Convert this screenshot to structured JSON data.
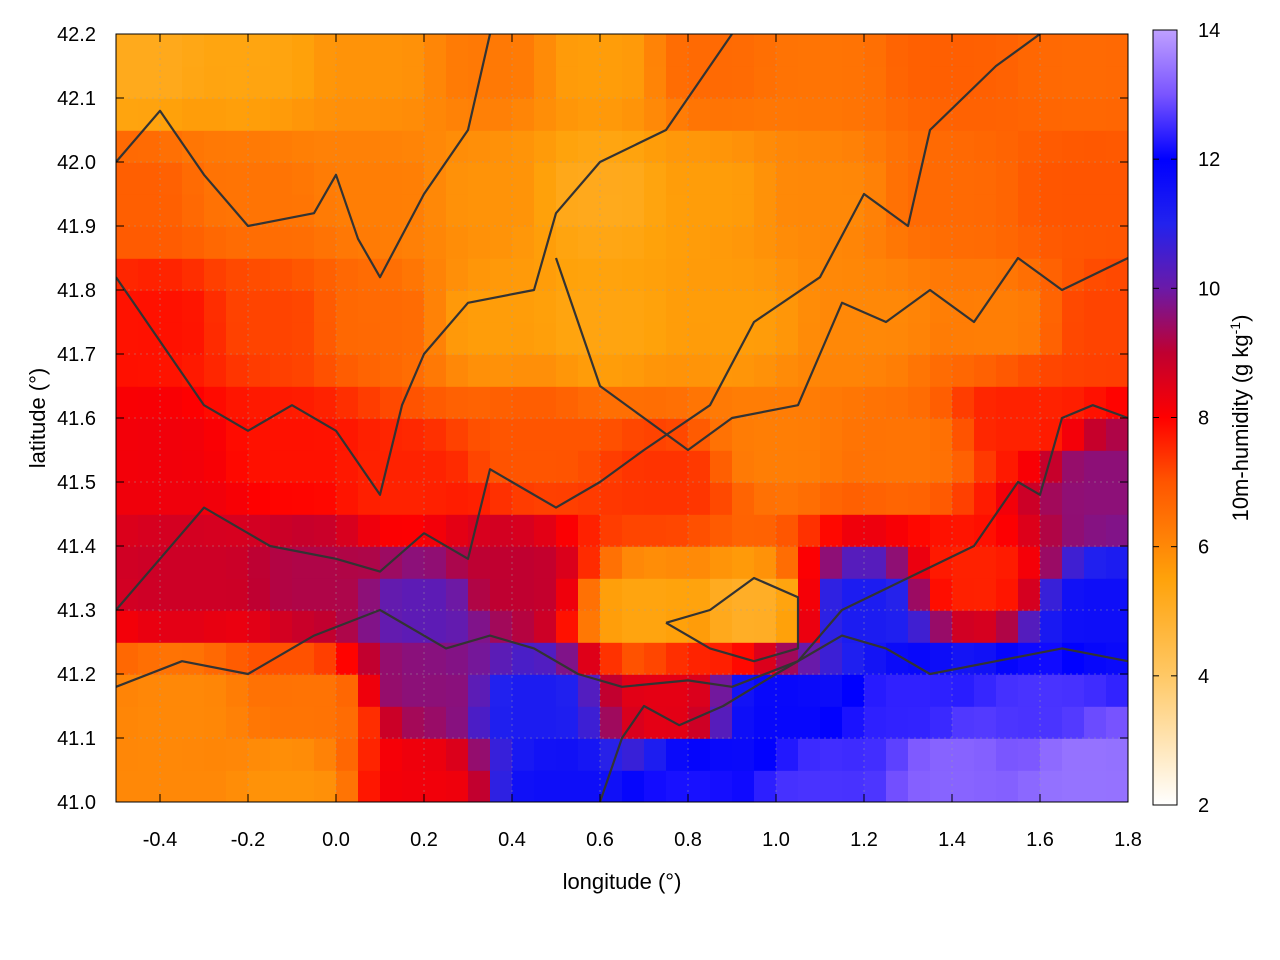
{
  "chart_data": {
    "type": "heatmap",
    "title": "",
    "xlabel": "longitude (°)",
    "ylabel": "latitude (°)",
    "colorbar_label": "10m-humidity (g kg",
    "colorbar_label_sup": "-1",
    "colorbar_label_end": ")",
    "xlim": [
      -0.5,
      1.8
    ],
    "ylim": [
      41.0,
      42.2
    ],
    "clim": [
      2,
      14
    ],
    "x_ticks": [
      {
        "value": -0.4,
        "label": "-0.4"
      },
      {
        "value": -0.2,
        "label": "-0.2"
      },
      {
        "value": 0.0,
        "label": "0.0"
      },
      {
        "value": 0.2,
        "label": "0.2"
      },
      {
        "value": 0.4,
        "label": "0.4"
      },
      {
        "value": 0.6,
        "label": "0.6"
      },
      {
        "value": 0.8,
        "label": "0.8"
      },
      {
        "value": 1.0,
        "label": "1.0"
      },
      {
        "value": 1.2,
        "label": "1.2"
      },
      {
        "value": 1.4,
        "label": "1.4"
      },
      {
        "value": 1.6,
        "label": "1.6"
      },
      {
        "value": 1.8,
        "label": "1.8"
      }
    ],
    "y_ticks": [
      {
        "value": 41.0,
        "label": "41.0"
      },
      {
        "value": 41.1,
        "label": "41.1"
      },
      {
        "value": 41.2,
        "label": "41.2"
      },
      {
        "value": 41.3,
        "label": "41.3"
      },
      {
        "value": 41.4,
        "label": "41.4"
      },
      {
        "value": 41.5,
        "label": "41.5"
      },
      {
        "value": 41.6,
        "label": "41.6"
      },
      {
        "value": 41.7,
        "label": "41.7"
      },
      {
        "value": 41.8,
        "label": "41.8"
      },
      {
        "value": 41.9,
        "label": "41.9"
      },
      {
        "value": 42.0,
        "label": "42.0"
      },
      {
        "value": 42.1,
        "label": "42.1"
      },
      {
        "value": 42.2,
        "label": "42.2"
      }
    ],
    "colorbar_ticks": [
      {
        "value": 2,
        "label": "2"
      },
      {
        "value": 4,
        "label": "4"
      },
      {
        "value": 6,
        "label": "6"
      },
      {
        "value": 8,
        "label": "8"
      },
      {
        "value": 10,
        "label": "10"
      },
      {
        "value": 12,
        "label": "12"
      },
      {
        "value": 14,
        "label": "14"
      }
    ],
    "colormap": [
      {
        "value": 2,
        "color": "#ffffff"
      },
      {
        "value": 4,
        "color": "#ffc865"
      },
      {
        "value": 5.5,
        "color": "#ffa20a"
      },
      {
        "value": 7,
        "color": "#ff5500"
      },
      {
        "value": 8,
        "color": "#ff0000"
      },
      {
        "value": 9,
        "color": "#c00030"
      },
      {
        "value": 10,
        "color": "#6a1aa8"
      },
      {
        "value": 11,
        "color": "#2222ee"
      },
      {
        "value": 12,
        "color": "#0000ff"
      },
      {
        "value": 13,
        "color": "#7a55ff"
      },
      {
        "value": 14,
        "color": "#bfa0ff"
      }
    ],
    "grid": true,
    "contours": true,
    "field_points": [
      {
        "lon": -0.45,
        "lat": 42.15,
        "value": 5.2
      },
      {
        "lon": -0.2,
        "lat": 42.15,
        "value": 5.4
      },
      {
        "lon": 0.1,
        "lat": 42.15,
        "value": 5.8
      },
      {
        "lon": 0.35,
        "lat": 42.15,
        "value": 6.3
      },
      {
        "lon": 0.6,
        "lat": 42.15,
        "value": 5.6
      },
      {
        "lon": 0.85,
        "lat": 42.15,
        "value": 6.6
      },
      {
        "lon": 1.1,
        "lat": 42.15,
        "value": 6.4
      },
      {
        "lon": 1.4,
        "lat": 42.15,
        "value": 6.8
      },
      {
        "lon": 1.7,
        "lat": 42.15,
        "value": 6.6
      },
      {
        "lon": -0.45,
        "lat": 41.95,
        "value": 6.8
      },
      {
        "lon": -0.2,
        "lat": 41.95,
        "value": 6.4
      },
      {
        "lon": 0.1,
        "lat": 41.95,
        "value": 6.2
      },
      {
        "lon": 0.35,
        "lat": 41.95,
        "value": 5.8
      },
      {
        "lon": 0.6,
        "lat": 41.95,
        "value": 5.2
      },
      {
        "lon": 0.85,
        "lat": 41.95,
        "value": 5.6
      },
      {
        "lon": 1.1,
        "lat": 41.95,
        "value": 6.0
      },
      {
        "lon": 1.4,
        "lat": 41.95,
        "value": 6.6
      },
      {
        "lon": 1.7,
        "lat": 41.95,
        "value": 7.0
      },
      {
        "lon": -0.4,
        "lat": 41.75,
        "value": 7.8
      },
      {
        "lon": -0.15,
        "lat": 41.75,
        "value": 7.2
      },
      {
        "lon": 0.1,
        "lat": 41.75,
        "value": 6.6
      },
      {
        "lon": 0.35,
        "lat": 41.75,
        "value": 5.6
      },
      {
        "lon": 0.6,
        "lat": 41.75,
        "value": 5.4
      },
      {
        "lon": 0.9,
        "lat": 41.75,
        "value": 5.6
      },
      {
        "lon": 1.2,
        "lat": 41.75,
        "value": 6.0
      },
      {
        "lon": 1.5,
        "lat": 41.75,
        "value": 6.2
      },
      {
        "lon": 1.75,
        "lat": 41.75,
        "value": 7.2
      },
      {
        "lon": -0.4,
        "lat": 41.55,
        "value": 8.2
      },
      {
        "lon": -0.1,
        "lat": 41.55,
        "value": 7.8
      },
      {
        "lon": 0.15,
        "lat": 41.5,
        "value": 7.6
      },
      {
        "lon": 0.45,
        "lat": 41.55,
        "value": 7.0
      },
      {
        "lon": 0.75,
        "lat": 41.5,
        "value": 7.4
      },
      {
        "lon": 1.0,
        "lat": 41.55,
        "value": 6.2
      },
      {
        "lon": 1.3,
        "lat": 41.55,
        "value": 6.4
      },
      {
        "lon": 1.55,
        "lat": 41.6,
        "value": 7.6
      },
      {
        "lon": 1.75,
        "lat": 41.5,
        "value": 9.6
      },
      {
        "lon": -0.35,
        "lat": 41.35,
        "value": 8.8
      },
      {
        "lon": -0.05,
        "lat": 41.35,
        "value": 9.2
      },
      {
        "lon": 0.2,
        "lat": 41.3,
        "value": 10.2
      },
      {
        "lon": 0.4,
        "lat": 41.35,
        "value": 9.0
      },
      {
        "lon": 0.7,
        "lat": 41.3,
        "value": 5.4
      },
      {
        "lon": 0.95,
        "lat": 41.3,
        "value": 5.0
      },
      {
        "lon": 1.2,
        "lat": 41.3,
        "value": 11.2
      },
      {
        "lon": 1.45,
        "lat": 41.35,
        "value": 7.6
      },
      {
        "lon": 1.75,
        "lat": 41.3,
        "value": 11.6
      },
      {
        "lon": -0.35,
        "lat": 41.15,
        "value": 6.0
      },
      {
        "lon": -0.05,
        "lat": 41.15,
        "value": 6.4
      },
      {
        "lon": 0.2,
        "lat": 41.18,
        "value": 9.6
      },
      {
        "lon": 0.45,
        "lat": 41.15,
        "value": 11.2
      },
      {
        "lon": 0.75,
        "lat": 41.15,
        "value": 8.4
      },
      {
        "lon": 1.0,
        "lat": 41.15,
        "value": 11.8
      },
      {
        "lon": 1.3,
        "lat": 41.15,
        "value": 12.4
      },
      {
        "lon": 1.6,
        "lat": 41.15,
        "value": 12.6
      },
      {
        "lon": -0.4,
        "lat": 41.03,
        "value": 6.0
      },
      {
        "lon": -0.1,
        "lat": 41.03,
        "value": 5.8
      },
      {
        "lon": 0.2,
        "lat": 41.03,
        "value": 8.2
      },
      {
        "lon": 0.5,
        "lat": 41.03,
        "value": 11.6
      },
      {
        "lon": 0.8,
        "lat": 41.03,
        "value": 12.2
      },
      {
        "lon": 1.1,
        "lat": 41.03,
        "value": 12.6
      },
      {
        "lon": 1.4,
        "lat": 41.05,
        "value": 13.2
      },
      {
        "lon": 1.7,
        "lat": 41.05,
        "value": 13.4
      }
    ],
    "contour_lines": [
      [
        [
          -0.5,
          42.0
        ],
        [
          -0.4,
          42.08
        ],
        [
          -0.3,
          41.98
        ],
        [
          -0.2,
          41.9
        ],
        [
          -0.05,
          41.92
        ],
        [
          0.0,
          41.98
        ],
        [
          0.05,
          41.88
        ],
        [
          0.1,
          41.82
        ],
        [
          0.2,
          41.95
        ],
        [
          0.3,
          42.05
        ],
        [
          0.35,
          42.2
        ]
      ],
      [
        [
          -0.5,
          41.82
        ],
        [
          -0.4,
          41.72
        ],
        [
          -0.3,
          41.62
        ],
        [
          -0.2,
          41.58
        ],
        [
          -0.1,
          41.62
        ],
        [
          0.0,
          41.58
        ],
        [
          0.1,
          41.48
        ],
        [
          0.15,
          41.62
        ],
        [
          0.2,
          41.7
        ],
        [
          0.3,
          41.78
        ],
        [
          0.45,
          41.8
        ],
        [
          0.5,
          41.92
        ],
        [
          0.6,
          42.0
        ],
        [
          0.75,
          42.05
        ],
        [
          0.9,
          42.2
        ]
      ],
      [
        [
          -0.5,
          41.3
        ],
        [
          -0.4,
          41.38
        ],
        [
          -0.3,
          41.46
        ],
        [
          -0.15,
          41.4
        ],
        [
          0.0,
          41.38
        ],
        [
          0.1,
          41.36
        ],
        [
          0.2,
          41.42
        ],
        [
          0.3,
          41.38
        ],
        [
          0.35,
          41.52
        ],
        [
          0.5,
          41.46
        ],
        [
          0.6,
          41.5
        ],
        [
          0.7,
          41.55
        ],
        [
          0.85,
          41.62
        ],
        [
          0.95,
          41.75
        ],
        [
          1.1,
          41.82
        ],
        [
          1.2,
          41.95
        ],
        [
          1.3,
          41.9
        ],
        [
          1.35,
          42.05
        ],
        [
          1.5,
          42.15
        ],
        [
          1.6,
          42.2
        ]
      ],
      [
        [
          -0.5,
          41.18
        ],
        [
          -0.35,
          41.22
        ],
        [
          -0.2,
          41.2
        ],
        [
          -0.05,
          41.26
        ],
        [
          0.1,
          41.3
        ],
        [
          0.25,
          41.24
        ],
        [
          0.35,
          41.26
        ],
        [
          0.45,
          41.24
        ],
        [
          0.55,
          41.2
        ],
        [
          0.65,
          41.18
        ],
        [
          0.8,
          41.19
        ],
        [
          0.9,
          41.18
        ],
        [
          1.05,
          41.22
        ],
        [
          1.15,
          41.3
        ],
        [
          1.3,
          41.35
        ],
        [
          1.45,
          41.4
        ],
        [
          1.55,
          41.5
        ],
        [
          1.6,
          41.48
        ],
        [
          1.65,
          41.6
        ],
        [
          1.72,
          41.62
        ],
        [
          1.8,
          41.6
        ]
      ],
      [
        [
          0.6,
          41.0
        ],
        [
          0.65,
          41.1
        ],
        [
          0.7,
          41.15
        ],
        [
          0.78,
          41.12
        ],
        [
          0.88,
          41.15
        ],
        [
          1.0,
          41.2
        ],
        [
          1.15,
          41.26
        ],
        [
          1.25,
          41.24
        ],
        [
          1.35,
          41.2
        ],
        [
          1.5,
          41.22
        ],
        [
          1.65,
          41.24
        ],
        [
          1.8,
          41.22
        ]
      ],
      [
        [
          0.5,
          41.85
        ],
        [
          0.55,
          41.75
        ],
        [
          0.6,
          41.65
        ],
        [
          0.7,
          41.6
        ],
        [
          0.8,
          41.55
        ],
        [
          0.9,
          41.6
        ],
        [
          1.05,
          41.62
        ],
        [
          1.1,
          41.7
        ],
        [
          1.15,
          41.78
        ],
        [
          1.25,
          41.75
        ],
        [
          1.35,
          41.8
        ],
        [
          1.45,
          41.75
        ],
        [
          1.55,
          41.85
        ],
        [
          1.65,
          41.8
        ],
        [
          1.8,
          41.85
        ]
      ],
      [
        [
          0.75,
          41.28
        ],
        [
          0.85,
          41.3
        ],
        [
          0.95,
          41.35
        ],
        [
          1.05,
          41.32
        ],
        [
          1.05,
          41.24
        ],
        [
          0.95,
          41.22
        ],
        [
          0.85,
          41.24
        ],
        [
          0.75,
          41.28
        ]
      ]
    ]
  }
}
